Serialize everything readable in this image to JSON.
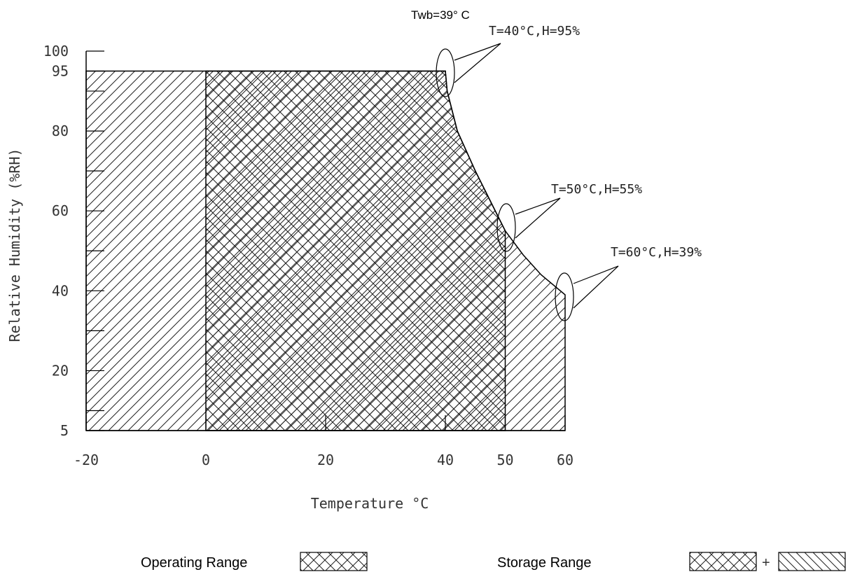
{
  "chart_data": {
    "type": "area",
    "xlabel": "Temperature °C",
    "ylabel": "Relative Humidity (%RH)",
    "xlim": [
      -20,
      60
    ],
    "ylim": [
      5,
      100
    ],
    "x_ticks": [
      "-20",
      "0",
      "20",
      "40",
      "50",
      "60"
    ],
    "x_tick_values": [
      -20,
      0,
      20,
      40,
      50,
      60
    ],
    "y_ticks": [
      "5",
      "20",
      "40",
      "60",
      "80",
      "95",
      "100"
    ],
    "y_tick_values": [
      5,
      20,
      40,
      60,
      80,
      95,
      100
    ],
    "y_minor_ticks": [
      10,
      30,
      50,
      70,
      90
    ],
    "series": [
      {
        "name": "Storage Range",
        "pattern": "diagonal-hatch",
        "boundary": [
          [
            -20,
            5
          ],
          [
            -20,
            95
          ],
          [
            40,
            95
          ],
          [
            40.3,
            90
          ],
          [
            42,
            80
          ],
          [
            45,
            70
          ],
          [
            48,
            61
          ],
          [
            50,
            55
          ],
          [
            53,
            49
          ],
          [
            56,
            44
          ],
          [
            60,
            39
          ],
          [
            60,
            5
          ]
        ]
      },
      {
        "name": "Operating Range",
        "pattern": "cross-hatch",
        "boundary": [
          [
            0,
            5
          ],
          [
            0,
            95
          ],
          [
            40,
            95
          ],
          [
            40.3,
            90
          ],
          [
            42,
            80
          ],
          [
            45,
            70
          ],
          [
            48,
            61
          ],
          [
            50,
            55
          ],
          [
            50,
            5
          ]
        ]
      }
    ],
    "annotations": [
      {
        "text": "Twb=39° C",
        "x": 40,
        "y": 95
      },
      {
        "text": "T=40°C,H=95%",
        "x": 40,
        "y": 95
      },
      {
        "text": "T=50°C,H=55%",
        "x": 50,
        "y": 55
      },
      {
        "text": "T=60°C,H=39%",
        "x": 60,
        "y": 39
      }
    ],
    "legend": [
      {
        "label": "Operating Range",
        "pattern": "cross-hatch"
      },
      {
        "label": "Storage Range",
        "pattern": "cross-hatch + diagonal-hatch",
        "separator": "+"
      }
    ]
  }
}
